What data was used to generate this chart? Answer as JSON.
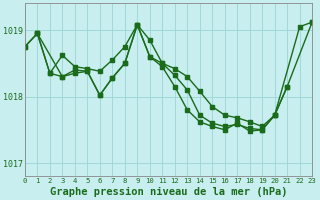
{
  "title": "Graphe pression niveau de la mer (hPa)",
  "background_color": "#c8eef0",
  "plot_bg_color": "#c8eef0",
  "line_color": "#1a6b1a",
  "grid_color": "#a0d8d8",
  "text_color": "#1a6b1a",
  "xlim": [
    0,
    23
  ],
  "ylim": [
    1016.8,
    1019.4
  ],
  "yticks": [
    1017,
    1018,
    1019
  ],
  "xticks": [
    0,
    1,
    2,
    3,
    4,
    5,
    6,
    7,
    8,
    9,
    10,
    11,
    12,
    13,
    14,
    15,
    16,
    17,
    18,
    19,
    20,
    21,
    22,
    23
  ],
  "marker_size": 2.5,
  "line_width": 1.0,
  "title_fontsize": 7.5,
  "tick_fontsize": 5.5,
  "series": [
    {
      "x": [
        0,
        1,
        2,
        3,
        4,
        5,
        6,
        7,
        8,
        9,
        10,
        11,
        12,
        13,
        14,
        15,
        16,
        17,
        18,
        19,
        20,
        22,
        23
      ],
      "y": [
        1018.75,
        1018.95,
        1018.35,
        1018.3,
        1018.4,
        1018.38,
        1018.02,
        1018.28,
        1018.5,
        1019.08,
        1018.6,
        1018.45,
        1018.15,
        1017.8,
        1017.62,
        1017.55,
        1017.5,
        1017.6,
        1017.48,
        1017.5,
        1017.72,
        1019.05,
        1019.12
      ]
    },
    {
      "x": [
        0,
        1,
        3,
        4,
        5,
        6,
        7,
        8,
        9,
        10,
        11,
        12,
        13,
        14,
        15,
        16,
        17,
        18,
        19,
        20,
        21,
        23
      ],
      "y": [
        1018.75,
        1018.95,
        1018.3,
        1018.35,
        1018.38,
        1018.02,
        1018.28,
        1018.5,
        1019.08,
        1018.85,
        1018.5,
        1018.32,
        1018.1,
        1017.72,
        1017.6,
        1017.55,
        1017.58,
        1017.52,
        1017.5,
        1017.72,
        1018.15,
        1019.12
      ]
    },
    {
      "x": [
        1,
        2,
        3,
        4,
        5,
        6,
        7,
        8,
        9,
        10,
        11,
        12,
        13,
        14,
        15,
        16,
        17,
        18,
        19,
        20,
        21
      ],
      "y": [
        1018.95,
        1018.35,
        1018.62,
        1018.45,
        1018.42,
        1018.38,
        1018.55,
        1018.75,
        1019.08,
        1018.6,
        1018.5,
        1018.42,
        1018.3,
        1018.08,
        1017.85,
        1017.72,
        1017.68,
        1017.62,
        1017.55,
        1017.72,
        1018.15
      ]
    }
  ]
}
